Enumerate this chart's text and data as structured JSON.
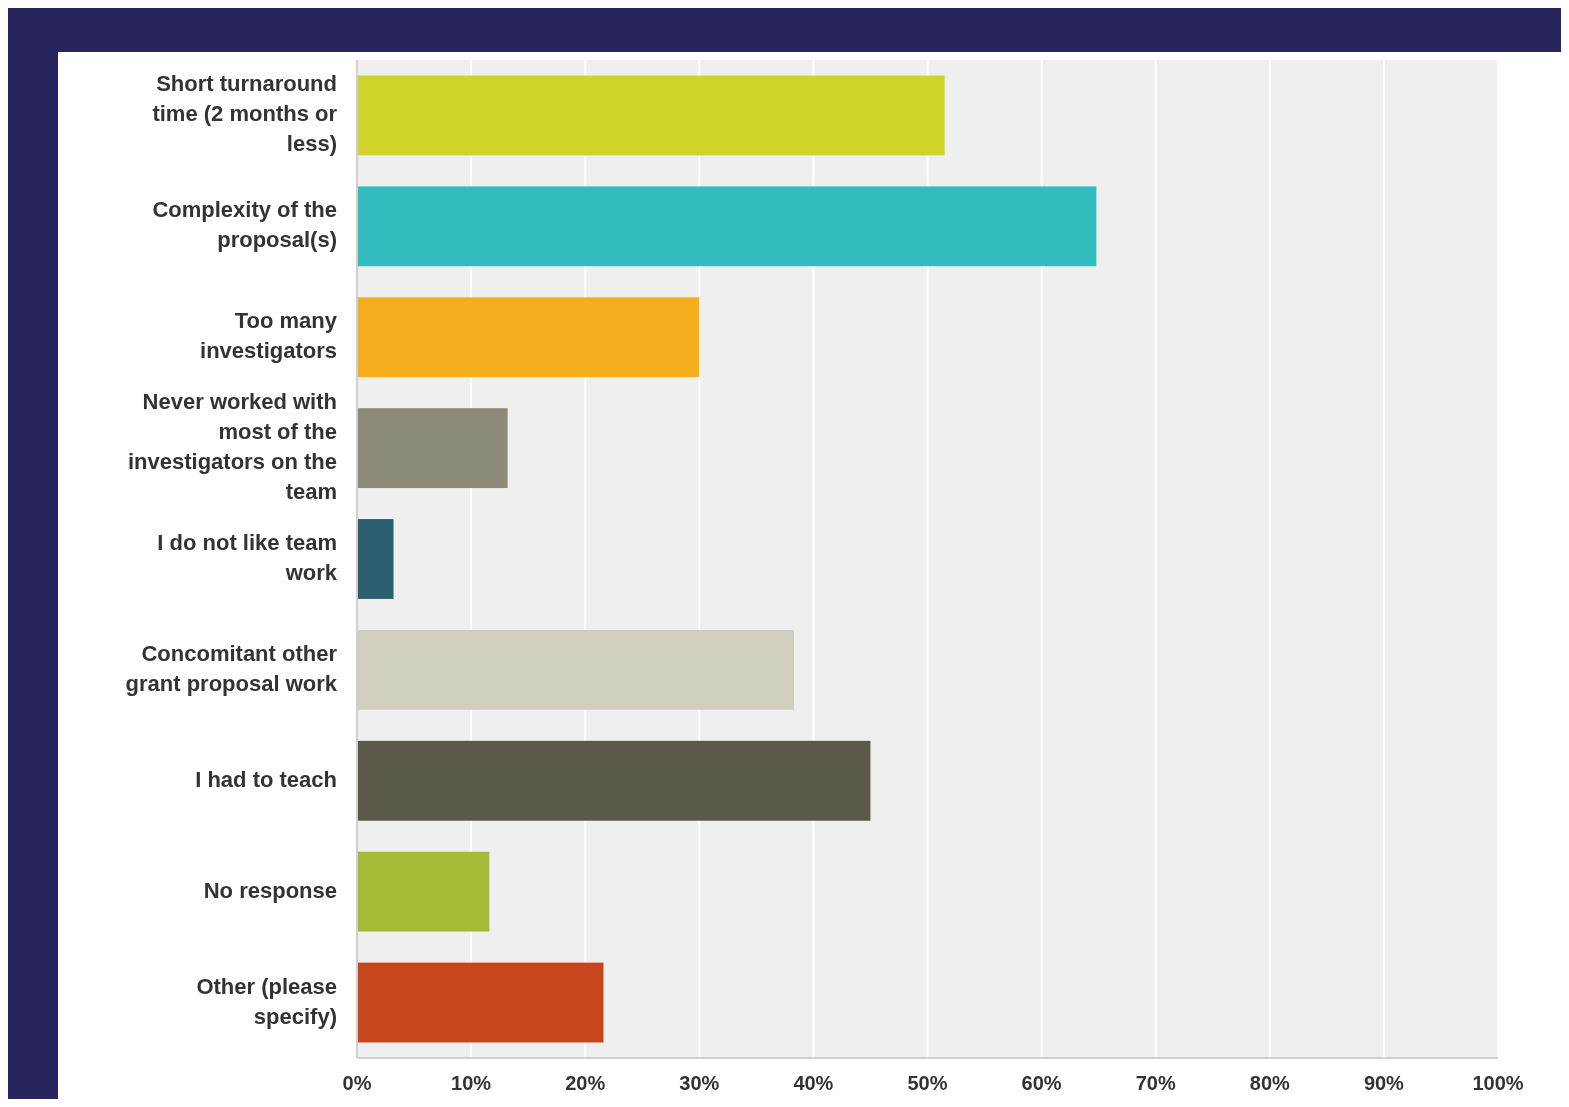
{
  "chart_data": {
    "type": "bar",
    "orientation": "horizontal",
    "categories": [
      "Short turnaround time (2 months or less)",
      "Complexity of the proposal(s)",
      "Too many investigators",
      "Never worked with most of the investigators on the team",
      "I do not like team work",
      "Concomitant other grant proposal work",
      "I had to teach",
      "No response",
      "Other (please specify)"
    ],
    "values": [
      51.5,
      64.8,
      30,
      13.2,
      3.2,
      38.3,
      45,
      11.6,
      21.6
    ],
    "colors": [
      "#ced428",
      "#33bcbd",
      "#f5ae1e",
      "#8b8b78",
      "#2c5f6d",
      "#d0cfbf",
      "#5a5848",
      "#a7ba37",
      "#c7461c"
    ],
    "xlim": [
      0,
      100
    ],
    "xticks": [
      {
        "value": 0,
        "label": "0%"
      },
      {
        "value": 10,
        "label": "10%"
      },
      {
        "value": 20,
        "label": "20%"
      },
      {
        "value": 30,
        "label": "30%"
      },
      {
        "value": 40,
        "label": "40%"
      },
      {
        "value": 50,
        "label": "50%"
      },
      {
        "value": 60,
        "label": "60%"
      },
      {
        "value": 70,
        "label": "70%"
      },
      {
        "value": 80,
        "label": "80%"
      },
      {
        "value": 90,
        "label": "90%"
      },
      {
        "value": 100,
        "label": "100%"
      }
    ],
    "grid": "x"
  }
}
